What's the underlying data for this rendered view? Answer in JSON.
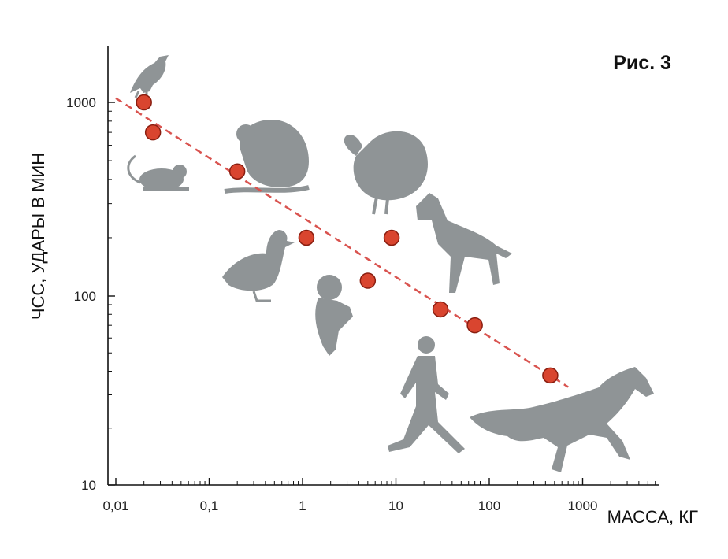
{
  "chart_data": {
    "type": "scatter",
    "title": "Рис. 3",
    "xlabel": "МАССА,  КГ",
    "ylabel": "ЧСС, УДАРЫ В МИН",
    "xscale": "log",
    "yscale": "log",
    "xlim": [
      0.01,
      1000
    ],
    "ylim": [
      10,
      1000
    ],
    "x_tick_labels": [
      "0,01",
      "0,1",
      "1",
      "10",
      "100",
      "1000"
    ],
    "y_tick_labels": [
      "10",
      "100",
      "1000"
    ],
    "points": [
      {
        "x": 0.02,
        "y": 1000
      },
      {
        "x": 0.025,
        "y": 700
      },
      {
        "x": 0.2,
        "y": 440
      },
      {
        "x": 1.1,
        "y": 200
      },
      {
        "x": 5,
        "y": 120
      },
      {
        "x": 9,
        "y": 200
      },
      {
        "x": 30,
        "y": 85
      },
      {
        "x": 70,
        "y": 70
      },
      {
        "x": 450,
        "y": 38
      }
    ],
    "trend_line": {
      "x": [
        0.01,
        700
      ],
      "y": [
        1050,
        33
      ],
      "style": "dashed",
      "color": "#d9534f"
    },
    "marker_color": "#d9452f",
    "marker_edge": "#8a1e10",
    "silhouettes": [
      "bird-icon",
      "mouse-icon",
      "rat-icon",
      "turkey-icon",
      "duck-icon",
      "dog-icon",
      "small-dog-icon",
      "human-icon",
      "horse-icon"
    ],
    "silhouette_color": "#8f9496"
  }
}
